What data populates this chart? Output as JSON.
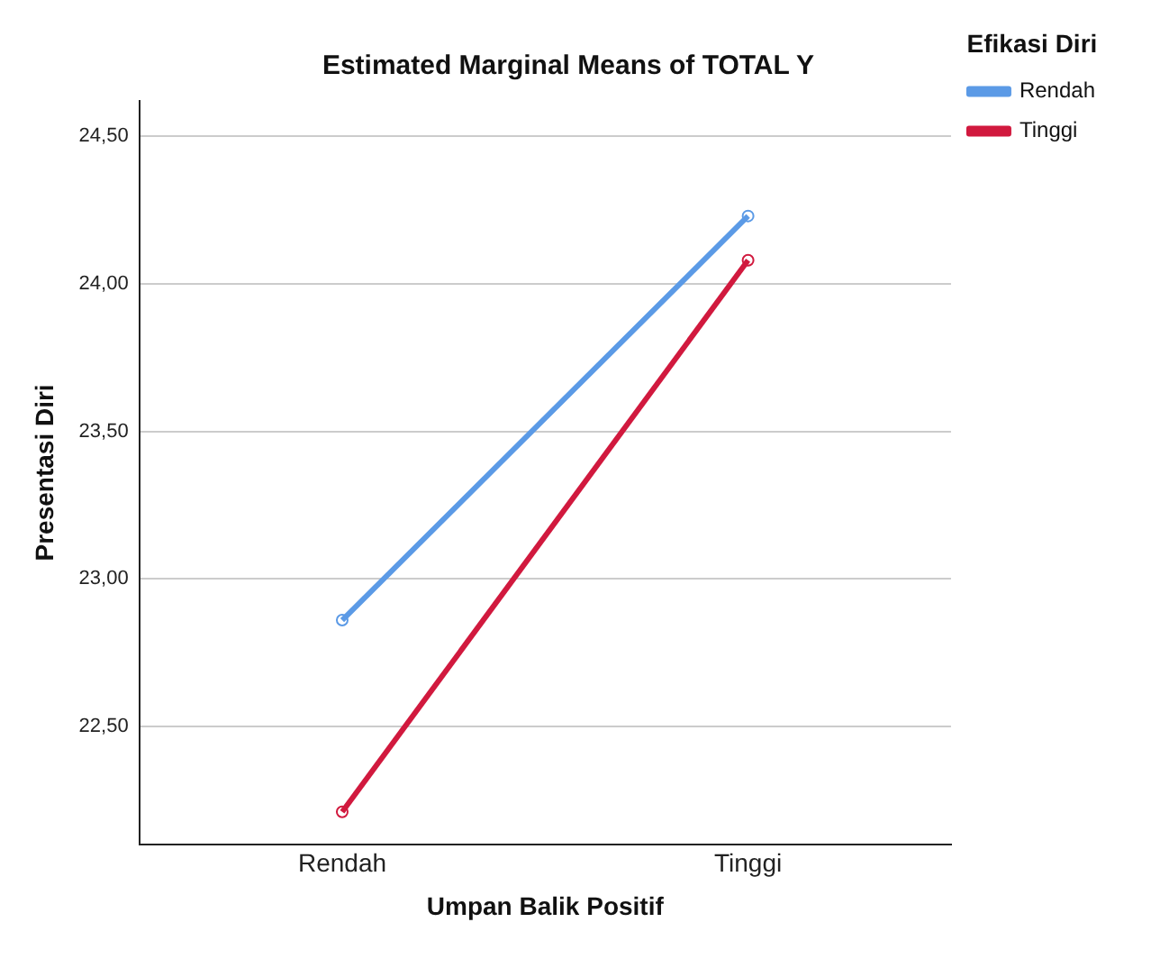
{
  "chart_data": {
    "type": "line",
    "title": "Estimated Marginal Means of TOTAL Y",
    "xlabel": "Umpan Balik Positif",
    "ylabel": "Presentasi Diri",
    "legend_title": "Efikasi Diri",
    "categories": [
      "Rendah",
      "Tinggi"
    ],
    "series": [
      {
        "name": "Rendah",
        "color": "#5b9ae6",
        "values": [
          22.86,
          24.23
        ]
      },
      {
        "name": "Tinggi",
        "color": "#d1193e",
        "values": [
          22.21,
          24.08
        ]
      }
    ],
    "ylim": [
      22.1,
      24.62
    ],
    "yticks": [
      {
        "value": 22.5,
        "label": "22,50"
      },
      {
        "value": 23,
        "label": "23,00"
      },
      {
        "value": 23.5,
        "label": "23,50"
      },
      {
        "value": 24,
        "label": "24,00"
      },
      {
        "value": 24.5,
        "label": "24,50"
      }
    ],
    "grid": "y",
    "legend": "top right",
    "marker": "circle",
    "line_style": "solid"
  }
}
